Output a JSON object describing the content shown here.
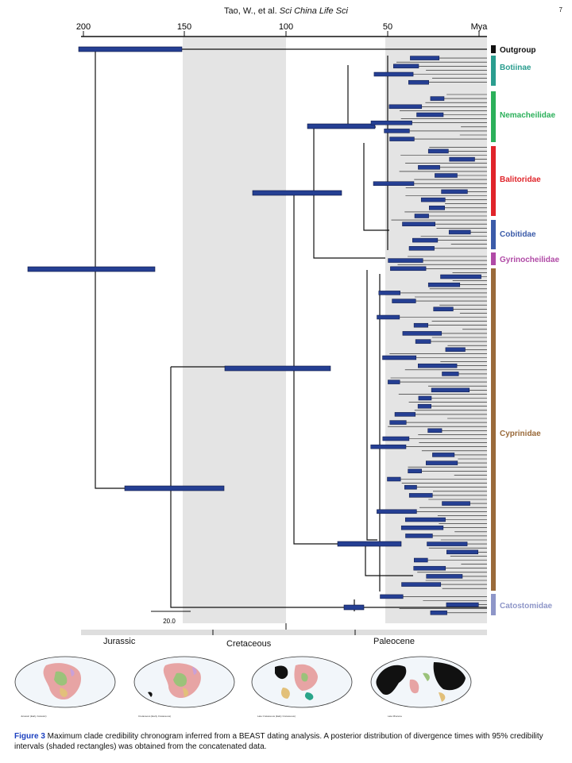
{
  "header": {
    "authors": "Tao, W., et al.",
    "journal": "Sci China Life Sci",
    "page": "7"
  },
  "axis": {
    "ticks": [
      "200",
      "150",
      "100",
      "50"
    ],
    "unit": "Mya"
  },
  "scale_bar": "20.0",
  "clades": [
    {
      "name": "Outgroup",
      "color": "#111111"
    },
    {
      "name": "Botiinae",
      "color": "#2a9d8f"
    },
    {
      "name": "Nemacheilidae",
      "color": "#2bb05a"
    },
    {
      "name": "Balitoridae",
      "color": "#e0242a"
    },
    {
      "name": "Cobitidae",
      "color": "#3b5ba9"
    },
    {
      "name": "Gyrinocheilidae",
      "color": "#b04aa6"
    },
    {
      "name": "Cyprinidae",
      "color": "#9a6a3a"
    },
    {
      "name": "Catostomidae",
      "color": "#8e96c8"
    }
  ],
  "periods": [
    "Jurassic",
    "Cretaceous",
    "Paleocene"
  ],
  "maps": [
    {
      "name": "continents-jurassic",
      "caption": "Jurassic (Early Jurassic)"
    },
    {
      "name": "continents-cretaceous-early",
      "caption": "Cretaceous (Early Cretaceous)"
    },
    {
      "name": "continents-cretaceous-late",
      "caption": "Late Cretaceous (Early Cretaceous)"
    },
    {
      "name": "continents-miocene",
      "caption": "Late Miocene"
    }
  ],
  "caption": {
    "label": "Figure 3",
    "text": " Maximum clade credibility chronogram inferred from a BEAST dating analysis. A posterior distribution of divergence times with 95% credibility intervals (shaded rectangles) was obtained from the concatenated data."
  },
  "colors": {
    "bar_fill": "#253f93",
    "bar_stroke": "#0c1640",
    "shade": "#e4e4e4"
  }
}
